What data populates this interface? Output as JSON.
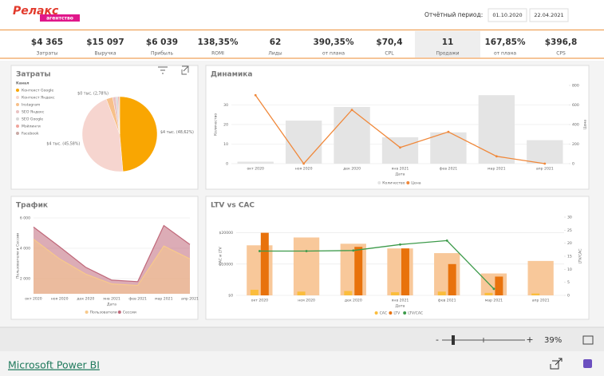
{
  "header": {
    "logo": "Релакс",
    "logo_tagline": "агентство",
    "period_label": "Отчётный период:",
    "period_start": "01.10.2020",
    "period_end": "22.04.2021"
  },
  "kpis": [
    {
      "value": "$4 365",
      "label": "Затраты"
    },
    {
      "value": "$15 097",
      "label": "Выручка"
    },
    {
      "value": "$6 039",
      "label": "Прибыль"
    },
    {
      "value": "138,35%",
      "label": "ROMI"
    },
    {
      "value": "62",
      "label": "Лиды"
    },
    {
      "value": "390,35%",
      "label": "от плана"
    },
    {
      "value": "$70,4",
      "label": "CPL"
    },
    {
      "value": "11",
      "label": "Продажи"
    },
    {
      "value": "167,85%",
      "label": "от плана"
    },
    {
      "value": "$396,8",
      "label": "CPS"
    }
  ],
  "chart_data": [
    {
      "type": "pie",
      "title": "Затраты",
      "legend_title": "Канал",
      "categories": [
        "Контекст Google",
        "Контекст Яндекс",
        "Instagram",
        "SEO Яндекс",
        "SEO Google",
        "Мэйлинги",
        "Facebook"
      ],
      "values": [
        48.62,
        45.58,
        2.78,
        1.4,
        0.9,
        0.5,
        0.22
      ],
      "value_labels": [
        "$4 тыс. (48,62%)",
        "$4 тыс. (45,58%)",
        "$0 тыс. (2,78%)",
        null,
        null,
        null,
        null
      ],
      "colors": [
        "#f9a602",
        "#f6d5cf",
        "#f7c08a",
        "#e9c2c2",
        "#d6d6d6",
        "#f0a49c",
        "#c9aaa6"
      ]
    },
    {
      "type": "bar_line",
      "title": "Динамика",
      "x_label": "Дата",
      "y_label": "Количество",
      "y2_label": "Цена",
      "categories": [
        "окт 2020",
        "ноя 2020",
        "дек 2020",
        "янв 2021",
        "фев 2021",
        "мар 2021",
        "апр 2021"
      ],
      "series": [
        {
          "name": "Количество",
          "type": "bar",
          "color": "#e4e4e4",
          "values": [
            1,
            22,
            29,
            13.5,
            16,
            35,
            12
          ]
        },
        {
          "name": "Цена",
          "type": "line",
          "axis": "y2",
          "color": "#f0883a",
          "values": [
            700,
            0,
            550,
            165,
            325,
            75,
            0
          ]
        }
      ],
      "ylim": [
        0,
        40
      ],
      "yticks": [
        0,
        10,
        20,
        30
      ],
      "y2lim": [
        0,
        800
      ],
      "y2ticks": [
        0,
        200,
        400,
        600,
        800
      ],
      "grid": true
    },
    {
      "type": "area",
      "title": "Трафик",
      "x_label": "Дата",
      "y_label": "Пользователи и Сессии",
      "categories": [
        "окт 2020",
        "ноя 2020",
        "дек 2020",
        "янв 2021",
        "фев 2021",
        "мар 2021",
        "апр 2021"
      ],
      "series": [
        {
          "name": "Пользователи",
          "color": "#f7c98b",
          "values": [
            4600,
            3300,
            2300,
            1650,
            1550,
            4150,
            3300
          ]
        },
        {
          "name": "Сессии",
          "color": "#c0687a",
          "values": [
            5400,
            4100,
            2750,
            1900,
            1800,
            5500,
            4250
          ]
        }
      ],
      "ylim": [
        1000,
        6000
      ],
      "yticks": [
        {
          "value": 2000,
          "label": "2 000"
        },
        {
          "value": 4000,
          "label": "4 000"
        },
        {
          "value": 6000,
          "label": "6 000"
        }
      ],
      "grid": true
    },
    {
      "type": "bar_line",
      "title": "LTV vs CAC",
      "x_label": "Дата",
      "y_label": "CAC и LTV",
      "y2_label": "LTV/CAC",
      "categories": [
        "окт 2020",
        "ноя 2020",
        "дек 2020",
        "янв 2021",
        "фев 2021",
        "мар 2021",
        "апр 2021"
      ],
      "series": [
        {
          "type": "bar",
          "color": "#f8c89a",
          "values": [
            16000,
            18500,
            16500,
            15000,
            13500,
            7000,
            11000
          ]
        },
        {
          "name": "CAC",
          "type": "bar",
          "color": "#fbbd3c",
          "values": [
            1800,
            1200,
            1400,
            1000,
            1200,
            800,
            600
          ]
        },
        {
          "name": "LTV",
          "type": "bar",
          "color": "#e8720c",
          "values": [
            20000,
            null,
            15500,
            15000,
            10000,
            6000,
            null
          ]
        },
        {
          "name": "LTV/CAC",
          "type": "line",
          "axis": "y2",
          "color": "#3c9a4a",
          "values": [
            17,
            17,
            17.2,
            19.5,
            21,
            2.5,
            null
          ]
        }
      ],
      "ylim": [
        0,
        25000
      ],
      "yticks": [
        {
          "value": 0,
          "label": "$0"
        },
        {
          "value": 10000,
          "label": "$10000"
        },
        {
          "value": 20000,
          "label": "$20000"
        }
      ],
      "y2lim": [
        0,
        30
      ],
      "y2ticks": [
        0,
        5,
        10,
        15,
        20,
        25,
        30
      ],
      "grid": true
    }
  ],
  "footer": {
    "zoom_minus": "-",
    "zoom_plus": "+",
    "zoom": "39%",
    "brand": "Microsoft Power BI"
  }
}
